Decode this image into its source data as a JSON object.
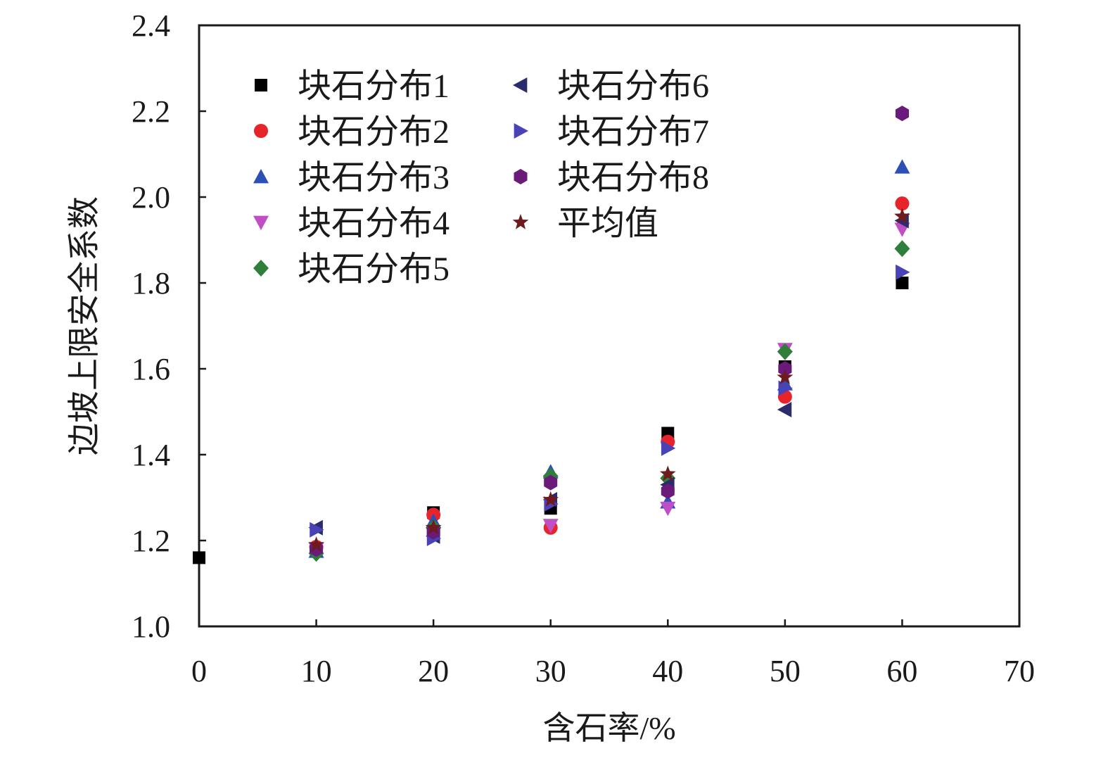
{
  "chart_data": {
    "type": "scatter",
    "xlabel": "含石率/%",
    "ylabel": "边坡上限安全系数",
    "xlim": [
      0,
      70
    ],
    "ylim": [
      1.0,
      2.4
    ],
    "xticks": [
      "0",
      "10",
      "20",
      "30",
      "40",
      "50",
      "60",
      "70"
    ],
    "yticks": [
      "1.0",
      "1.2",
      "1.4",
      "1.6",
      "1.8",
      "2.0",
      "2.2",
      "2.4"
    ],
    "grid": false,
    "legend_position": "top-left",
    "series": [
      {
        "name": "块石分布1",
        "marker": "square",
        "color": "#000000",
        "points": [
          [
            0,
            1.16
          ],
          [
            10,
            1.18
          ],
          [
            20,
            1.265
          ],
          [
            30,
            1.275
          ],
          [
            40,
            1.45
          ],
          [
            50,
            1.605
          ],
          [
            60,
            1.8
          ]
        ]
      },
      {
        "name": "块石分布2",
        "marker": "circle",
        "color": "#e8242b",
        "points": [
          [
            10,
            1.185
          ],
          [
            20,
            1.26
          ],
          [
            30,
            1.23
          ],
          [
            40,
            1.43
          ],
          [
            50,
            1.535
          ],
          [
            60,
            1.985
          ]
        ]
      },
      {
        "name": "块石分布3",
        "marker": "triangle-up",
        "color": "#2e4fb5",
        "points": [
          [
            10,
            1.175
          ],
          [
            20,
            1.245
          ],
          [
            30,
            1.36
          ],
          [
            40,
            1.29
          ],
          [
            50,
            1.565
          ],
          [
            60,
            2.07
          ]
        ]
      },
      {
        "name": "块石分布4",
        "marker": "triangle-down",
        "color": "#c04fc6",
        "points": [
          [
            10,
            1.18
          ],
          [
            20,
            1.215
          ],
          [
            30,
            1.235
          ],
          [
            40,
            1.275
          ],
          [
            50,
            1.645
          ],
          [
            60,
            1.925
          ]
        ]
      },
      {
        "name": "块石分布5",
        "marker": "diamond",
        "color": "#2f7f3a",
        "points": [
          [
            10,
            1.17
          ],
          [
            20,
            1.23
          ],
          [
            30,
            1.35
          ],
          [
            40,
            1.345
          ],
          [
            50,
            1.64
          ],
          [
            60,
            1.88
          ]
        ]
      },
      {
        "name": "块石分布6",
        "marker": "triangle-left",
        "color": "#2a2c6b",
        "points": [
          [
            10,
            1.23
          ],
          [
            20,
            1.21
          ],
          [
            30,
            1.295
          ],
          [
            40,
            1.33
          ],
          [
            50,
            1.505
          ],
          [
            60,
            1.945
          ]
        ]
      },
      {
        "name": "块石分布7",
        "marker": "triangle-right",
        "color": "#4a43b8",
        "points": [
          [
            10,
            1.225
          ],
          [
            20,
            1.205
          ],
          [
            30,
            1.285
          ],
          [
            40,
            1.415
          ],
          [
            50,
            1.555
          ],
          [
            60,
            1.825
          ]
        ]
      },
      {
        "name": "块石分布8",
        "marker": "hexagon",
        "color": "#6a1b7a",
        "points": [
          [
            10,
            1.18
          ],
          [
            20,
            1.22
          ],
          [
            30,
            1.335
          ],
          [
            40,
            1.315
          ],
          [
            50,
            1.6
          ],
          [
            60,
            2.195
          ]
        ]
      },
      {
        "name": "平均值",
        "marker": "star",
        "color": "#6e1a1f",
        "points": [
          [
            10,
            1.19
          ],
          [
            20,
            1.23
          ],
          [
            30,
            1.295
          ],
          [
            40,
            1.355
          ],
          [
            50,
            1.58
          ],
          [
            60,
            1.955
          ]
        ]
      }
    ]
  }
}
